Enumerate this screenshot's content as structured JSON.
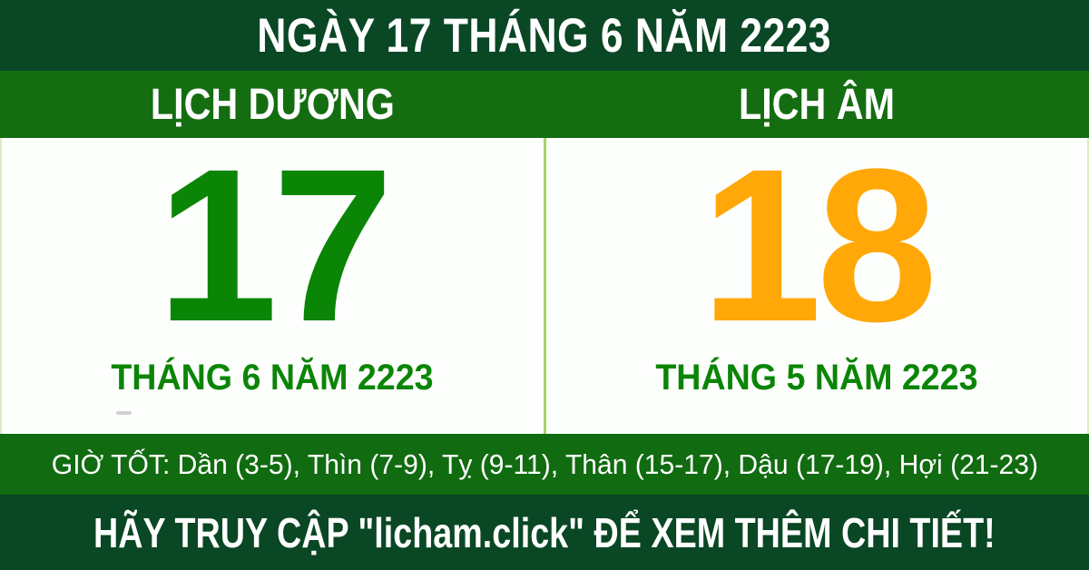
{
  "banner": {
    "title": "NGÀY 17 THÁNG 6 NĂM 2223"
  },
  "calendar": {
    "solar": {
      "label": "LỊCH DƯƠNG",
      "day": "17",
      "month_year": "THÁNG 6 NĂM 2223"
    },
    "lunar": {
      "label": "LỊCH ÂM",
      "day": "18",
      "month_year": "THÁNG 5 NĂM 2223"
    }
  },
  "good_hours": {
    "text": "GIỜ TỐT: Dần (3-5), Thìn (7-9), Tỵ (9-11), Thân (15-17), Dậu (17-19), Hợi (21-23)"
  },
  "footer": {
    "cta_text": "HÃY TRUY CẬP \"licham.click\" ĐỂ XEM THÊM CHI TIẾT!"
  },
  "colors": {
    "dark_green_band": "#0a4724",
    "green_band": "#156d11",
    "hours_band_green": "#116b10",
    "solar_day_green": "#0b8506",
    "lunar_day_orange": "#ffa807",
    "divider_light_green": "#a9d46b",
    "text_white": "#ffffff",
    "panel_white": "#fdfffd"
  }
}
